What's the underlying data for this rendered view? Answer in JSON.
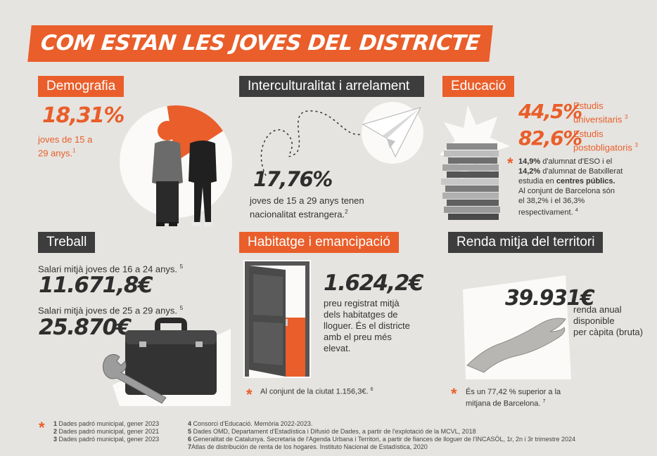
{
  "title": "COM ESTAN LES JOVES DEL DISTRICTE",
  "demografia": {
    "heading": "Demografia",
    "value": "18,31%",
    "desc_1": "joves de 15 a",
    "desc_2": "29 anys.",
    "note": "1",
    "pie_fraction": 0.1831
  },
  "interculturalitat": {
    "heading": "Interculturalitat i arrelament",
    "value": "17,76%",
    "desc_1": "joves de 15 a 29 anys tenen",
    "desc_2": "nacionalitat estrangera.",
    "note": "2"
  },
  "educacio": {
    "heading": "Educació",
    "stat1_value": "44,5%",
    "stat1_label_1": "Estudis",
    "stat1_label_2": "universitaris",
    "stat1_note": "3",
    "stat2_value": "82,6%",
    "stat2_label_1": "Estudis",
    "stat2_label_2": "postobligatoris",
    "stat2_note": "3",
    "eso_pct": "14,9%",
    "eso_text": " d'alumnat d'ESO i el",
    "batx_pct": "14,2%",
    "batx_text": " d'alumnat de Batxillerat",
    "line3_a": "estudia en ",
    "line3_b": "centres públics.",
    "line4": "Al conjunt de Barcelona són",
    "line5": "el 38,2% i el 36,3%",
    "line6": "respectivament.",
    "note": "4"
  },
  "treball": {
    "heading": "Treball",
    "label1": "Salari mitjà joves de 16 a 24 anys.",
    "note1": "5",
    "value1": "11.671,8€",
    "label2": "Salari mitjà joves de 25 a 29 anys.",
    "note2": "5",
    "value2": "25.870€"
  },
  "habitatge": {
    "heading": "Habitatge i emancipació",
    "value": "1.624,2€",
    "desc": [
      "preu registrat mitjà",
      "dels habitatges de",
      "lloguer. És el districte",
      "amb el preu més",
      "elevat."
    ],
    "footnote": "Al conjunt de la ciutat 1.156,3€.",
    "note": "6"
  },
  "renda": {
    "heading": "Renda mitja del territori",
    "value": "39.931€",
    "desc": [
      "renda anual",
      "disponible",
      "per càpita (bruta)"
    ],
    "footnote_1": "És un 77,42 % superior a la",
    "footnote_2": "mitjana de Barcelona.",
    "note": "7"
  },
  "footnotes": {
    "col1": [
      {
        "n": "1",
        "text": " Dades padró municipal, gener 2023"
      },
      {
        "n": "2",
        "text": " Dades padró municipal, gener 2021"
      },
      {
        "n": "3",
        "text": " Dades padró municipal, gener 2023"
      }
    ],
    "col2": [
      {
        "n": "4",
        "text": " Consorci d'Educació. Memòria 2022-2023."
      },
      {
        "n": "5",
        "text": " Dades OMD, Departament d'Estadística i Difusió de Dades, a partir de l'explotació de la MCVL, 2018"
      },
      {
        "n": "6",
        "text": " Generalitat de Catalunya. Secretaria de l'Agenda Urbana i Territori, a partir de fiances de lloguer de l'INCASÒL, 1r, 2n i 3r trimestre 2024"
      },
      {
        "n": "7",
        "text": "Atlas de distribución de renta de los hogares. Instituto Nacional de Estadística, 2020"
      }
    ]
  },
  "colors": {
    "accent": "#e95e2a",
    "dark": "#3d3d3d",
    "background": "#e6e4e0"
  },
  "icons": [
    "pie-chart-icon",
    "people-photo-icon",
    "paper-plane-icon",
    "books-stack-icon",
    "briefcase-icon",
    "wrench-icon",
    "door-icon",
    "hand-icon",
    "asterisk-icon"
  ]
}
